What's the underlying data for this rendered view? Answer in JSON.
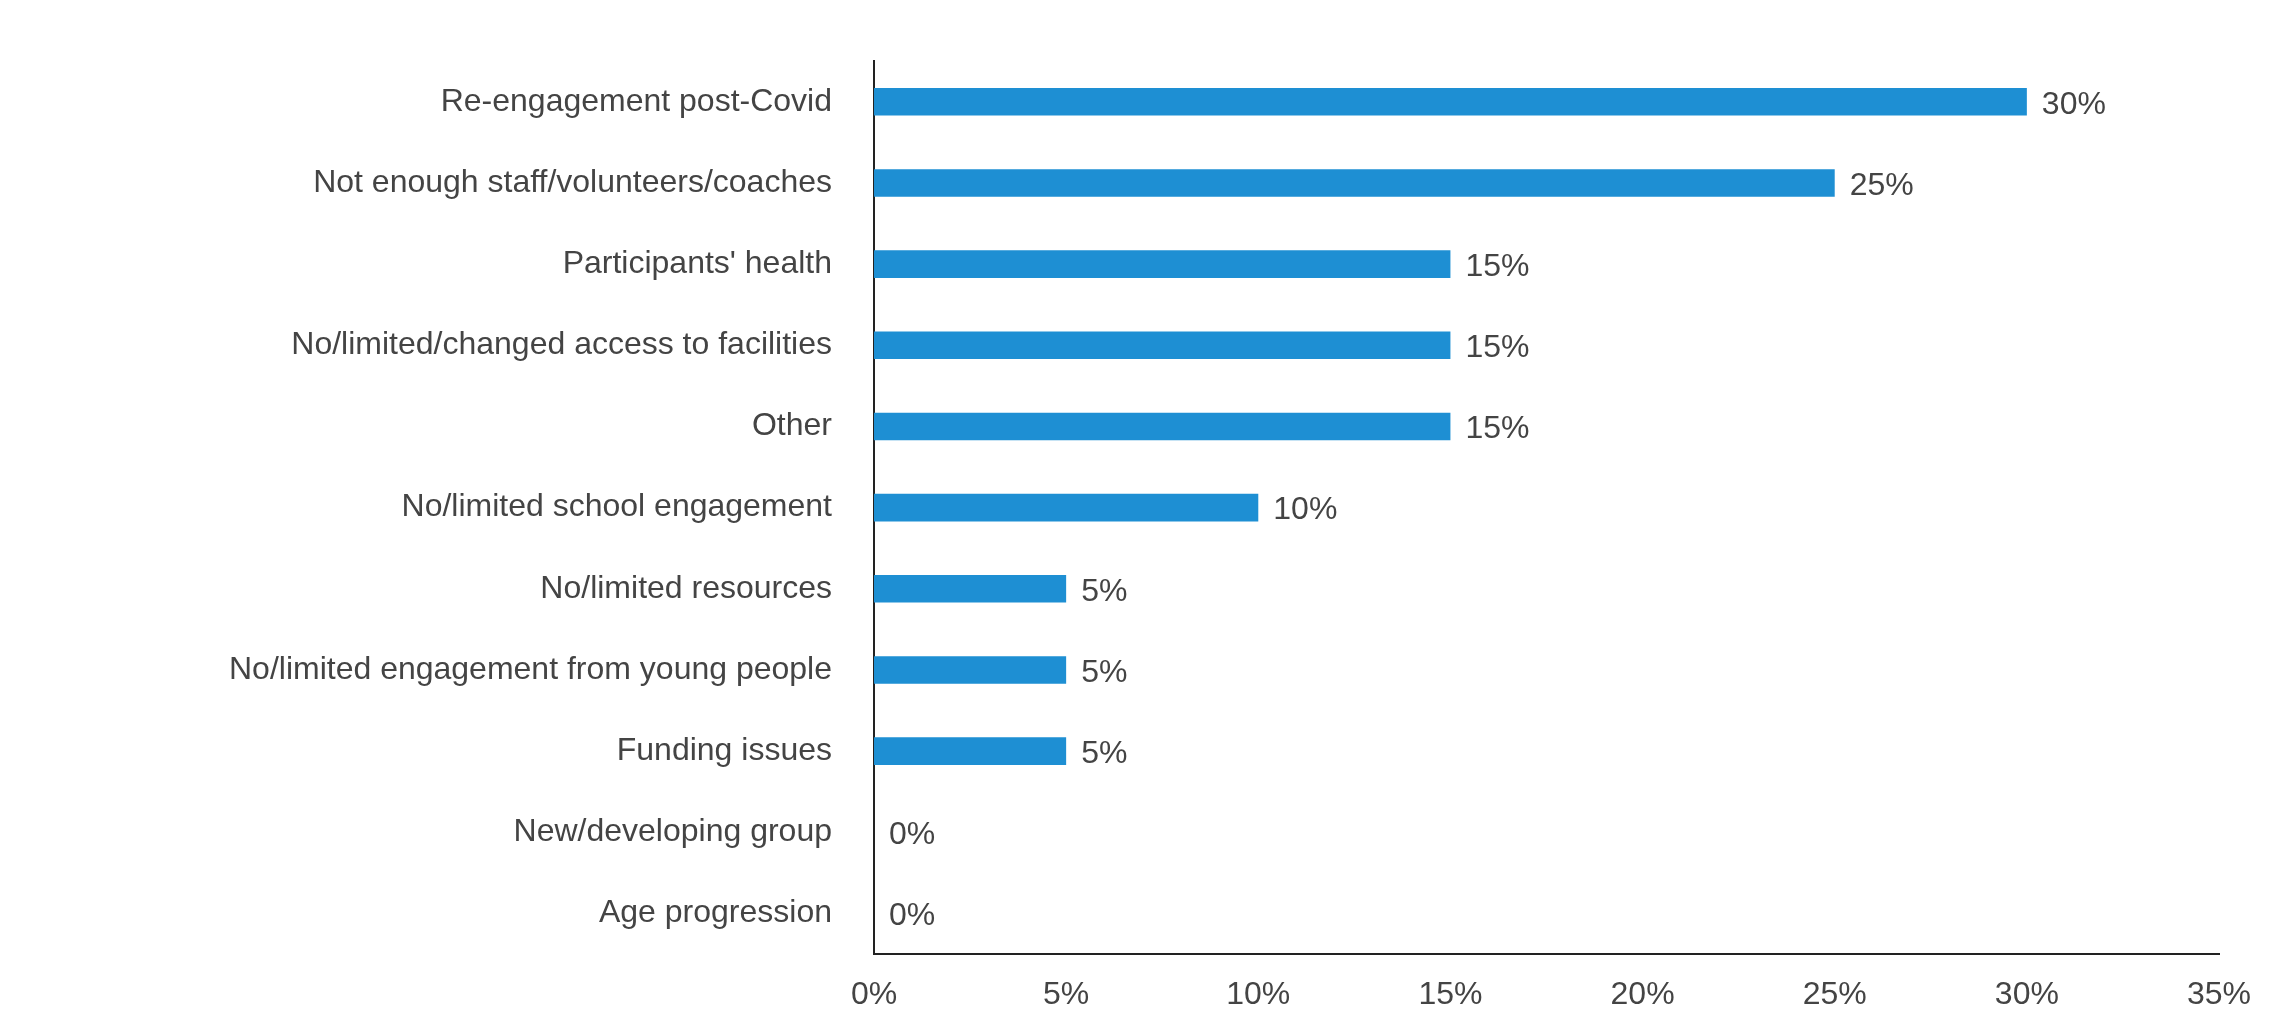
{
  "chart_data": {
    "type": "bar",
    "orientation": "horizontal",
    "categories": [
      "Re-engagement post-Covid",
      "Not enough staff/volunteers/coaches",
      "Participants' health",
      "No/limited/changed access to facilities",
      "Other",
      "No/limited school engagement",
      "No/limited resources",
      "No/limited engagement from young people",
      "Funding issues",
      "New/developing group",
      "Age progression"
    ],
    "values": [
      30,
      25,
      15,
      15,
      15,
      10,
      5,
      5,
      5,
      0,
      0
    ],
    "value_labels": [
      "30%",
      "25%",
      "15%",
      "15%",
      "15%",
      "10%",
      "5%",
      "5%",
      "5%",
      "0%",
      "0%"
    ],
    "color": "#1e8fd3",
    "xlim": [
      0,
      35
    ],
    "xticks": [
      {
        "value": 0,
        "label": "0%"
      },
      {
        "value": 5,
        "label": "5%"
      },
      {
        "value": 10,
        "label": "10%"
      },
      {
        "value": 15,
        "label": "15%"
      },
      {
        "value": 20,
        "label": "20%"
      },
      {
        "value": 25,
        "label": "25%"
      },
      {
        "value": 30,
        "label": "30%"
      },
      {
        "value": 35,
        "label": "35%"
      }
    ],
    "grid": false,
    "legend": false
  }
}
